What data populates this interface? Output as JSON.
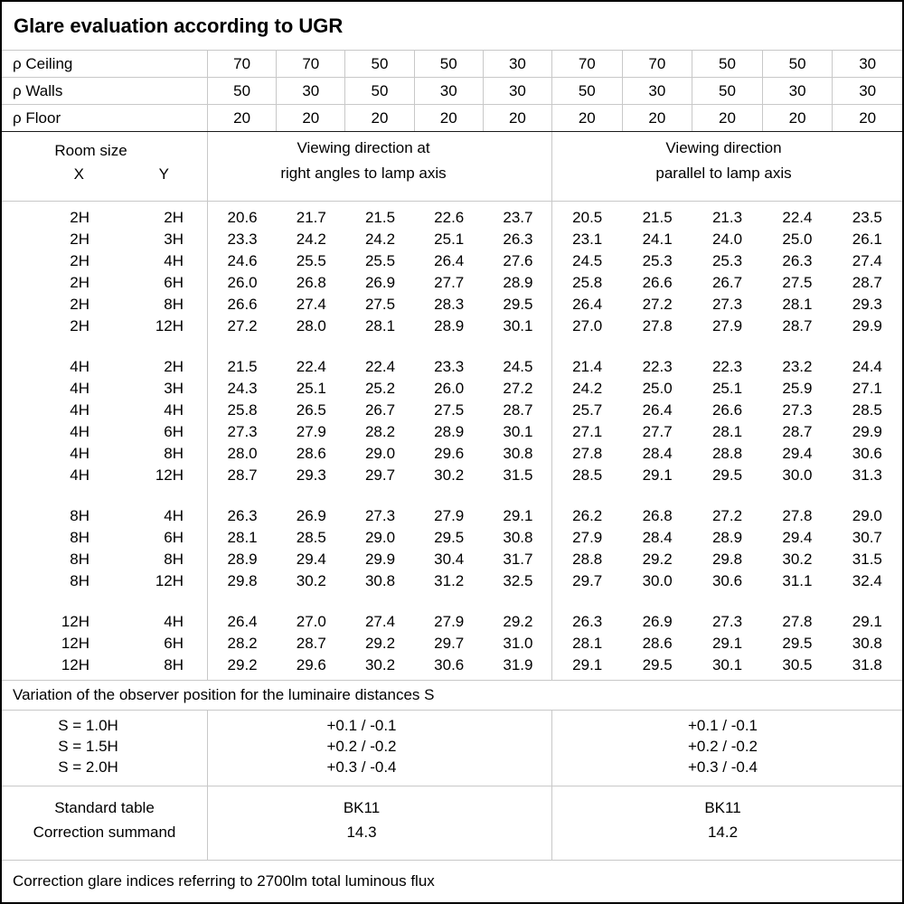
{
  "title": "Glare evaluation according to UGR",
  "reflectance": {
    "rows": [
      {
        "label": "ρ Ceiling",
        "values": [
          "70",
          "70",
          "50",
          "50",
          "30",
          "70",
          "70",
          "50",
          "50",
          "30"
        ]
      },
      {
        "label": "ρ Walls",
        "values": [
          "50",
          "30",
          "50",
          "30",
          "30",
          "50",
          "30",
          "50",
          "30",
          "30"
        ]
      },
      {
        "label": "ρ Floor",
        "values": [
          "20",
          "20",
          "20",
          "20",
          "20",
          "20",
          "20",
          "20",
          "20",
          "20"
        ]
      }
    ]
  },
  "header": {
    "room_size_label": "Room size",
    "x_label": "X",
    "y_label": "Y",
    "group1_line1": "Viewing direction at",
    "group1_line2": "right angles to lamp axis",
    "group2_line1": "Viewing direction",
    "group2_line2": "parallel to lamp axis"
  },
  "ugr_blocks": [
    {
      "rows": [
        {
          "x": "2H",
          "y": "2H",
          "values": [
            "20.6",
            "21.7",
            "21.5",
            "22.6",
            "23.7",
            "20.5",
            "21.5",
            "21.3",
            "22.4",
            "23.5"
          ]
        },
        {
          "x": "2H",
          "y": "3H",
          "values": [
            "23.3",
            "24.2",
            "24.2",
            "25.1",
            "26.3",
            "23.1",
            "24.1",
            "24.0",
            "25.0",
            "26.1"
          ]
        },
        {
          "x": "2H",
          "y": "4H",
          "values": [
            "24.6",
            "25.5",
            "25.5",
            "26.4",
            "27.6",
            "24.5",
            "25.3",
            "25.3",
            "26.3",
            "27.4"
          ]
        },
        {
          "x": "2H",
          "y": "6H",
          "values": [
            "26.0",
            "26.8",
            "26.9",
            "27.7",
            "28.9",
            "25.8",
            "26.6",
            "26.7",
            "27.5",
            "28.7"
          ]
        },
        {
          "x": "2H",
          "y": "8H",
          "values": [
            "26.6",
            "27.4",
            "27.5",
            "28.3",
            "29.5",
            "26.4",
            "27.2",
            "27.3",
            "28.1",
            "29.3"
          ]
        },
        {
          "x": "2H",
          "y": "12H",
          "values": [
            "27.2",
            "28.0",
            "28.1",
            "28.9",
            "30.1",
            "27.0",
            "27.8",
            "27.9",
            "28.7",
            "29.9"
          ]
        }
      ]
    },
    {
      "rows": [
        {
          "x": "4H",
          "y": "2H",
          "values": [
            "21.5",
            "22.4",
            "22.4",
            "23.3",
            "24.5",
            "21.4",
            "22.3",
            "22.3",
            "23.2",
            "24.4"
          ]
        },
        {
          "x": "4H",
          "y": "3H",
          "values": [
            "24.3",
            "25.1",
            "25.2",
            "26.0",
            "27.2",
            "24.2",
            "25.0",
            "25.1",
            "25.9",
            "27.1"
          ]
        },
        {
          "x": "4H",
          "y": "4H",
          "values": [
            "25.8",
            "26.5",
            "26.7",
            "27.5",
            "28.7",
            "25.7",
            "26.4",
            "26.6",
            "27.3",
            "28.5"
          ]
        },
        {
          "x": "4H",
          "y": "6H",
          "values": [
            "27.3",
            "27.9",
            "28.2",
            "28.9",
            "30.1",
            "27.1",
            "27.7",
            "28.1",
            "28.7",
            "29.9"
          ]
        },
        {
          "x": "4H",
          "y": "8H",
          "values": [
            "28.0",
            "28.6",
            "29.0",
            "29.6",
            "30.8",
            "27.8",
            "28.4",
            "28.8",
            "29.4",
            "30.6"
          ]
        },
        {
          "x": "4H",
          "y": "12H",
          "values": [
            "28.7",
            "29.3",
            "29.7",
            "30.2",
            "31.5",
            "28.5",
            "29.1",
            "29.5",
            "30.0",
            "31.3"
          ]
        }
      ]
    },
    {
      "rows": [
        {
          "x": "8H",
          "y": "4H",
          "values": [
            "26.3",
            "26.9",
            "27.3",
            "27.9",
            "29.1",
            "26.2",
            "26.8",
            "27.2",
            "27.8",
            "29.0"
          ]
        },
        {
          "x": "8H",
          "y": "6H",
          "values": [
            "28.1",
            "28.5",
            "29.0",
            "29.5",
            "30.8",
            "27.9",
            "28.4",
            "28.9",
            "29.4",
            "30.7"
          ]
        },
        {
          "x": "8H",
          "y": "8H",
          "values": [
            "28.9",
            "29.4",
            "29.9",
            "30.4",
            "31.7",
            "28.8",
            "29.2",
            "29.8",
            "30.2",
            "31.5"
          ]
        },
        {
          "x": "8H",
          "y": "12H",
          "values": [
            "29.8",
            "30.2",
            "30.8",
            "31.2",
            "32.5",
            "29.7",
            "30.0",
            "30.6",
            "31.1",
            "32.4"
          ]
        }
      ]
    },
    {
      "rows": [
        {
          "x": "12H",
          "y": "4H",
          "values": [
            "26.4",
            "27.0",
            "27.4",
            "27.9",
            "29.2",
            "26.3",
            "26.9",
            "27.3",
            "27.8",
            "29.1"
          ]
        },
        {
          "x": "12H",
          "y": "6H",
          "values": [
            "28.2",
            "28.7",
            "29.2",
            "29.7",
            "31.0",
            "28.1",
            "28.6",
            "29.1",
            "29.5",
            "30.8"
          ]
        },
        {
          "x": "12H",
          "y": "8H",
          "values": [
            "29.2",
            "29.6",
            "30.2",
            "30.6",
            "31.9",
            "29.1",
            "29.5",
            "30.1",
            "30.5",
            "31.8"
          ]
        }
      ]
    }
  ],
  "variation_note": "Variation of the observer position for the luminaire distances S",
  "spacing_correction": {
    "rows": [
      {
        "label": "S = 1.0H",
        "right_angles": "+0.1 / -0.1",
        "parallel": "+0.1 / -0.1"
      },
      {
        "label": "S = 1.5H",
        "right_angles": "+0.2 / -0.2",
        "parallel": "+0.2 / -0.2"
      },
      {
        "label": "S = 2.0H",
        "right_angles": "+0.3 / -0.4",
        "parallel": "+0.3 / -0.4"
      }
    ]
  },
  "standard": {
    "rows": [
      {
        "label": "Standard table",
        "right_angles": "BK11",
        "parallel": "BK11"
      },
      {
        "label": "Correction summand",
        "right_angles": "14.3",
        "parallel": "14.2"
      }
    ]
  },
  "footer_note": "Correction glare indices referring to 2700lm total luminous flux",
  "colors": {
    "background": "#ffffff",
    "text": "#000000",
    "grid_line": "#c8c8c8",
    "dark_line": "#1a1a1a",
    "outer_border": "#000000"
  }
}
